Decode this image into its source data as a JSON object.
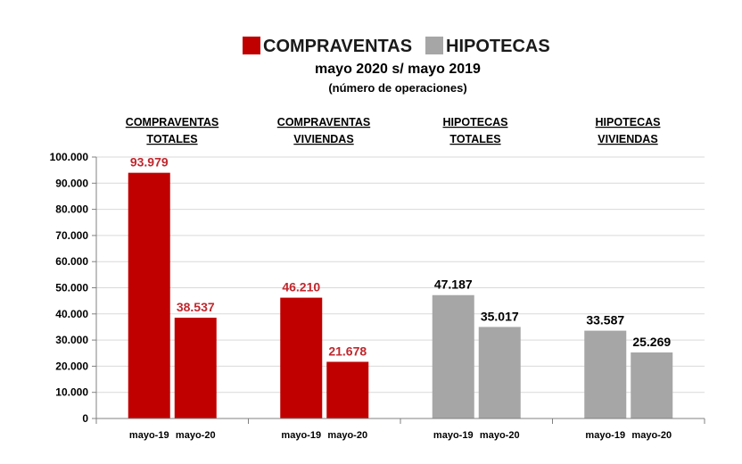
{
  "chart_data": {
    "type": "bar",
    "legend": [
      {
        "name": "COMPRAVENTAS",
        "color": "#c00000"
      },
      {
        "name": "HIPOTECAS",
        "color": "#a6a6a6"
      }
    ],
    "title": "mayo 2020 s/ mayo 2019",
    "subtitle": "(número de operaciones)",
    "ylim": [
      0,
      100000
    ],
    "yticks": [
      "0",
      "10.000",
      "20.000",
      "30.000",
      "40.000",
      "50.000",
      "60.000",
      "70.000",
      "80.000",
      "90.000",
      "100.000"
    ],
    "groups": [
      {
        "label_line1": "COMPRAVENTAS",
        "label_line2": "TOTALES",
        "series": "COMPRAVENTAS",
        "bars": [
          {
            "x": "mayo-19",
            "value": 93979,
            "label": "93.979"
          },
          {
            "x": "mayo-20",
            "value": 38537,
            "label": "38.537"
          }
        ]
      },
      {
        "label_line1": "COMPRAVENTAS",
        "label_line2": "VIVIENDAS",
        "series": "COMPRAVENTAS",
        "bars": [
          {
            "x": "mayo-19",
            "value": 46210,
            "label": "46.210"
          },
          {
            "x": "mayo-20",
            "value": 21678,
            "label": "21.678"
          }
        ]
      },
      {
        "label_line1": "HIPOTECAS",
        "label_line2": "TOTALES",
        "series": "HIPOTECAS",
        "bars": [
          {
            "x": "mayo-19",
            "value": 47187,
            "label": "47.187"
          },
          {
            "x": "mayo-20",
            "value": 35017,
            "label": "35.017"
          }
        ]
      },
      {
        "label_line1": "HIPOTECAS",
        "label_line2": "VIVIENDAS",
        "series": "HIPOTECAS",
        "bars": [
          {
            "x": "mayo-19",
            "value": 33587,
            "label": "33.587"
          },
          {
            "x": "mayo-20",
            "value": 25269,
            "label": "25.269"
          }
        ]
      }
    ],
    "grid": true,
    "legend_position": "top-center",
    "label_colors": {
      "COMPRAVENTAS": "#c0272d",
      "HIPOTECAS": "#000000"
    }
  }
}
